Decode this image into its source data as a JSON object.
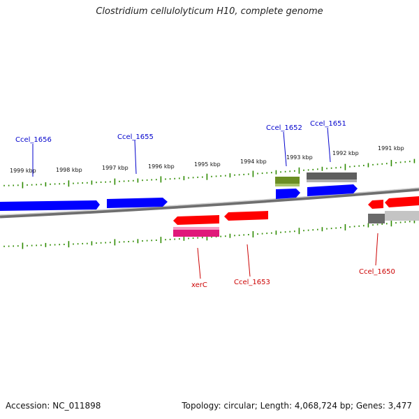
{
  "title": "Clostridium cellulolyticum H10, complete genome",
  "accession": "Accession: NC_011898",
  "summary": "Topology: circular; Length: 4,068,724 bp; Genes: 3,477",
  "scale": {
    "unit": "kbp",
    "labels": [
      "1999 kbp",
      "1998 kbp",
      "1997 kbp",
      "1996 kbp",
      "1995 kbp",
      "1994 kbp",
      "1993 kbp",
      "1992 kbp",
      "1991 kbp"
    ]
  },
  "gene_labels": {
    "forward": [
      "Ccel_1656",
      "Ccel_1655",
      "Ccel_1652",
      "Ccel_1651"
    ],
    "reverse": [
      "xerC",
      "Ccel_1653",
      "Ccel_1650"
    ]
  },
  "colors": {
    "forward_label": "#0000cc",
    "reverse_label": "#cc0000",
    "forward_cds": "#0000ff",
    "reverse_cds": "#ff0000",
    "ticks": "#2e8b00",
    "backbone": "#8a8a8a",
    "olive_feature": "#6b8e23",
    "gray_feature": "#666666",
    "magenta_feature": "#e0197a"
  }
}
